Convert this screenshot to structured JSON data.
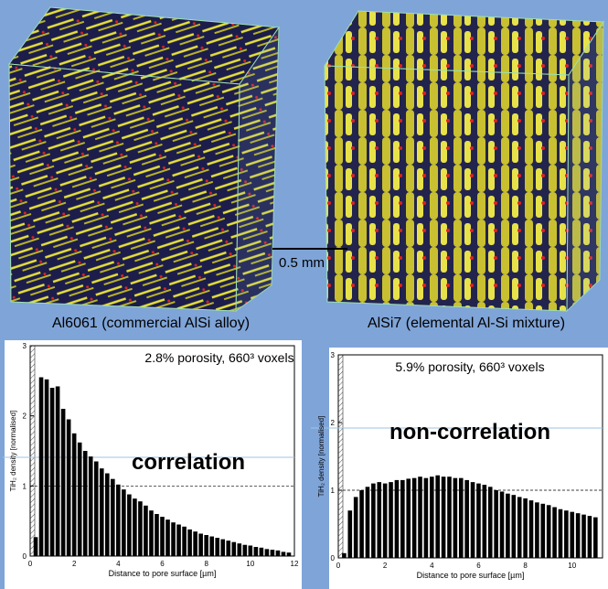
{
  "scale_bar": "0.5 mm",
  "captions": [
    "Al6061 (commercial AlSi alloy)",
    "AlSi7 (elemental Al-Si mixture)"
  ],
  "chart_data": [
    {
      "type": "bar",
      "annotations": [
        "2.8% porosity, 660³ voxels",
        "correlation"
      ],
      "x_label": "Distance to pore surface [µm]",
      "y_label": "TiH₂ density [normalised]",
      "x": [
        0.25,
        0.5,
        0.75,
        1,
        1.25,
        1.5,
        1.75,
        2,
        2.25,
        2.5,
        2.75,
        3,
        3.25,
        3.5,
        3.75,
        4,
        4.25,
        4.5,
        4.75,
        5,
        5.25,
        5.5,
        5.75,
        6,
        6.25,
        6.5,
        6.75,
        7,
        7.25,
        7.5,
        7.75,
        8,
        8.25,
        8.5,
        8.75,
        9,
        9.25,
        9.5,
        9.75,
        10,
        10.25,
        10.5,
        10.75,
        11,
        11.25,
        11.5,
        11.75
      ],
      "values": [
        0.27,
        2.55,
        2.52,
        2.4,
        2.42,
        2.1,
        1.95,
        1.75,
        1.62,
        1.5,
        1.42,
        1.35,
        1.25,
        1.18,
        1.1,
        1.02,
        0.95,
        0.88,
        0.82,
        0.78,
        0.72,
        0.65,
        0.6,
        0.56,
        0.52,
        0.48,
        0.45,
        0.42,
        0.38,
        0.35,
        0.32,
        0.3,
        0.28,
        0.26,
        0.24,
        0.22,
        0.2,
        0.18,
        0.16,
        0.15,
        0.13,
        0.12,
        0.1,
        0.09,
        0.08,
        0.06,
        0.05
      ],
      "color": "#000000",
      "reference_line": 1,
      "xlim": [
        0,
        12
      ],
      "xticks": [
        0,
        2,
        4,
        6,
        8,
        10,
        12
      ],
      "ylim": [
        0,
        3
      ],
      "yticks": [
        0,
        1,
        2,
        3
      ]
    },
    {
      "type": "bar",
      "annotations": [
        "5.9% porosity, 660³ voxels",
        "non-correlation"
      ],
      "x_label": "Distance to pore surface [µm]",
      "y_label": "TiH₂ density [normalised]",
      "x": [
        0.25,
        0.5,
        0.75,
        1,
        1.25,
        1.5,
        1.75,
        2,
        2.25,
        2.5,
        2.75,
        3,
        3.25,
        3.5,
        3.75,
        4,
        4.25,
        4.5,
        4.75,
        5,
        5.25,
        5.5,
        5.75,
        6,
        6.25,
        6.5,
        6.75,
        7,
        7.25,
        7.5,
        7.75,
        8,
        8.25,
        8.5,
        8.75,
        9,
        9.25,
        9.5,
        9.75,
        10,
        10.25,
        10.5,
        10.75,
        11
      ],
      "values": [
        0.07,
        0.7,
        0.9,
        1.0,
        1.05,
        1.1,
        1.12,
        1.1,
        1.12,
        1.15,
        1.15,
        1.17,
        1.18,
        1.2,
        1.18,
        1.2,
        1.22,
        1.2,
        1.2,
        1.18,
        1.18,
        1.15,
        1.12,
        1.1,
        1.08,
        1.05,
        1.0,
        0.98,
        0.95,
        0.93,
        0.9,
        0.88,
        0.85,
        0.82,
        0.8,
        0.78,
        0.75,
        0.72,
        0.7,
        0.68,
        0.66,
        0.64,
        0.62,
        0.6
      ],
      "color": "#000000",
      "reference_line": 1,
      "xlim": [
        0,
        11.3
      ],
      "xticks": [
        0,
        2,
        4,
        6,
        8,
        10
      ],
      "ylim": [
        0,
        3
      ],
      "yticks": [
        0,
        1,
        2,
        3
      ]
    }
  ]
}
